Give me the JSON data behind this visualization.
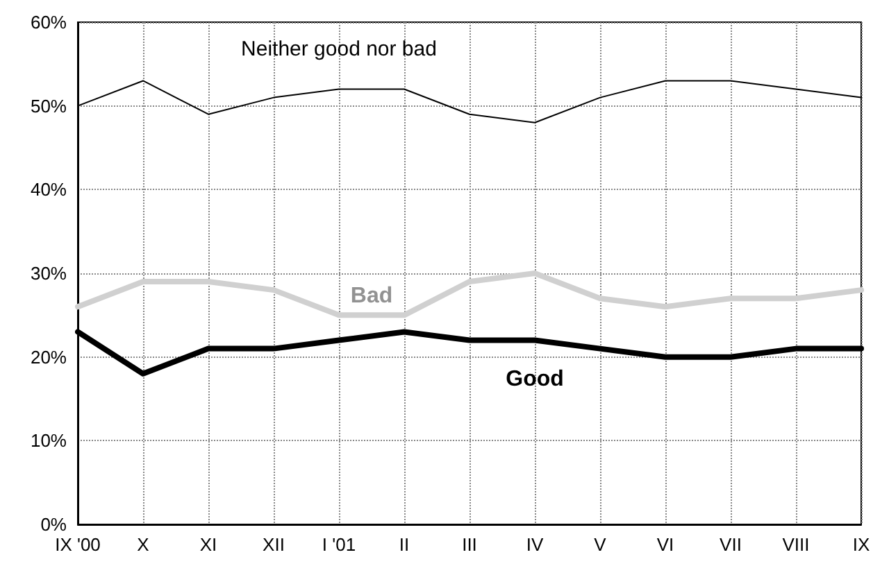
{
  "chart_data": {
    "type": "line",
    "categories": [
      "IX '00",
      "X",
      "XI",
      "XII",
      "I '01",
      "II",
      "III",
      "IV",
      "V",
      "VI",
      "VII",
      "VIII",
      "IX"
    ],
    "series": [
      {
        "name": "Neither good nor bad",
        "color": "#000000",
        "values": [
          50,
          53,
          49,
          51,
          52,
          52,
          49,
          48,
          51,
          53,
          53,
          52,
          51
        ]
      },
      {
        "name": "Bad",
        "color": "#d0d0d0",
        "values": [
          26,
          29,
          29,
          28,
          25,
          25,
          29,
          30,
          27,
          26,
          27,
          27,
          28
        ]
      },
      {
        "name": "Good",
        "color": "#000000",
        "values": [
          23,
          18,
          21,
          21,
          22,
          23,
          22,
          22,
          21,
          20,
          20,
          21,
          21
        ]
      }
    ],
    "ylim": [
      0,
      60
    ],
    "yticks": [
      {
        "value": 0,
        "label": "0%"
      },
      {
        "value": 10,
        "label": "10%"
      },
      {
        "value": 20,
        "label": "20%"
      },
      {
        "value": 30,
        "label": "30%"
      },
      {
        "value": 40,
        "label": "40%"
      },
      {
        "value": 50,
        "label": "50%"
      },
      {
        "value": 60,
        "label": "60%"
      }
    ],
    "grid": true,
    "legend": false,
    "marker": "none",
    "line_style": "solid"
  }
}
